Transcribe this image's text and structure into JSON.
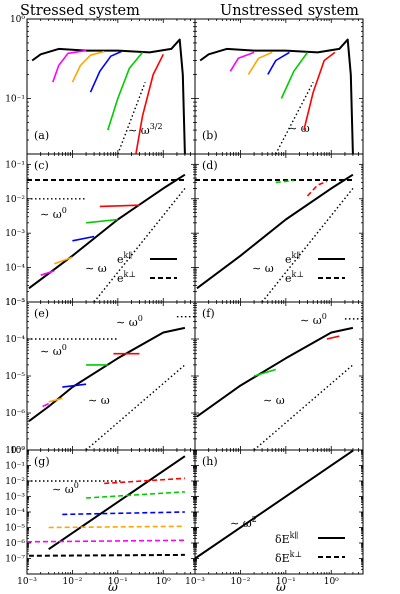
{
  "titles": {
    "left": "Stressed system",
    "right": "Unstressed system"
  },
  "x_label": "ω",
  "legend_rows23": {
    "par": "e",
    "par_sup": "k∥",
    "perp": "e",
    "perp_sup": "k⊥"
  },
  "legend_row4": {
    "par": "δE",
    "par_sup": "k∥",
    "perp": "δE",
    "perp_sup": "k⊥"
  },
  "colors": {
    "black": "#000000",
    "magenta": "#ff00ff",
    "orange": "#ffa500",
    "blue": "#0000ff",
    "green": "#00cc00",
    "red": "#ff0000"
  },
  "chart_data": [
    {
      "panel": "a",
      "label": "(a)",
      "type": "line",
      "x_scale": "log",
      "y_scale": "log",
      "xlim": [
        0.001,
        5
      ],
      "ylim": [
        0.02,
        1
      ],
      "annotation": "~ ω^{3/2}",
      "y_ticks": [
        "10⁰",
        "10⁻¹"
      ],
      "series": [
        {
          "color": "black",
          "points": [
            [
              0.0013,
              0.3
            ],
            [
              0.002,
              0.36
            ],
            [
              0.005,
              0.42
            ],
            [
              0.02,
              0.4
            ],
            [
              0.1,
              0.4
            ],
            [
              0.5,
              0.38
            ],
            [
              1.5,
              0.42
            ],
            [
              2.3,
              0.55
            ],
            [
              2.7,
              0.2
            ],
            [
              3.0,
              0.02
            ]
          ]
        },
        {
          "color": "magenta",
          "points": [
            [
              0.0037,
              0.16
            ],
            [
              0.005,
              0.26
            ],
            [
              0.008,
              0.37
            ],
            [
              0.02,
              0.4
            ]
          ]
        },
        {
          "color": "orange",
          "points": [
            [
              0.01,
              0.16
            ],
            [
              0.015,
              0.26
            ],
            [
              0.025,
              0.35
            ],
            [
              0.05,
              0.39
            ]
          ]
        },
        {
          "color": "blue",
          "points": [
            [
              0.025,
              0.12
            ],
            [
              0.04,
              0.22
            ],
            [
              0.07,
              0.34
            ],
            [
              0.12,
              0.39
            ]
          ]
        },
        {
          "color": "green",
          "points": [
            [
              0.06,
              0.04
            ],
            [
              0.1,
              0.1
            ],
            [
              0.18,
              0.24
            ],
            [
              0.35,
              0.38
            ]
          ]
        },
        {
          "color": "red",
          "points": [
            [
              0.25,
              0.02
            ],
            [
              0.35,
              0.06
            ],
            [
              0.6,
              0.2
            ],
            [
              1.0,
              0.36
            ]
          ]
        }
      ],
      "guide": {
        "style": "dotted",
        "slope": 1.5,
        "from": [
          0.1,
          0.02
        ],
        "to": [
          0.4,
          0.16
        ]
      }
    },
    {
      "panel": "b",
      "label": "(b)",
      "type": "line",
      "x_scale": "log",
      "y_scale": "log",
      "xlim": [
        0.001,
        5
      ],
      "ylim": [
        0.02,
        1
      ],
      "annotation": "~ ω",
      "series": [
        {
          "color": "black",
          "points": [
            [
              0.0013,
              0.3
            ],
            [
              0.002,
              0.36
            ],
            [
              0.005,
              0.42
            ],
            [
              0.02,
              0.4
            ],
            [
              0.1,
              0.4
            ],
            [
              0.5,
              0.38
            ],
            [
              1.5,
              0.42
            ],
            [
              2.3,
              0.55
            ],
            [
              2.7,
              0.2
            ],
            [
              3.0,
              0.02
            ]
          ]
        },
        {
          "color": "magenta",
          "points": [
            [
              0.006,
              0.22
            ],
            [
              0.009,
              0.32
            ],
            [
              0.02,
              0.38
            ]
          ]
        },
        {
          "color": "orange",
          "points": [
            [
              0.015,
              0.2
            ],
            [
              0.025,
              0.32
            ],
            [
              0.05,
              0.38
            ]
          ]
        },
        {
          "color": "blue",
          "points": [
            [
              0.04,
              0.2
            ],
            [
              0.06,
              0.3
            ],
            [
              0.12,
              0.38
            ]
          ]
        },
        {
          "color": "green",
          "points": [
            [
              0.08,
              0.1
            ],
            [
              0.15,
              0.22
            ],
            [
              0.3,
              0.38
            ]
          ]
        },
        {
          "color": "red",
          "points": [
            [
              0.25,
              0.04
            ],
            [
              0.4,
              0.12
            ],
            [
              0.7,
              0.3
            ],
            [
              1.2,
              0.38
            ]
          ]
        }
      ],
      "guide": {
        "style": "dotted",
        "slope": 1,
        "from": [
          0.06,
          0.02
        ],
        "to": [
          0.4,
          0.16
        ]
      }
    },
    {
      "panel": "c",
      "label": "(c)",
      "type": "line",
      "x_scale": "log",
      "y_scale": "log",
      "xlim": [
        0.001,
        5
      ],
      "ylim": [
        1e-05,
        0.2
      ],
      "annotations": [
        "~ ω⁰",
        "~ ω"
      ],
      "y_ticks": [
        "10⁻¹",
        "10⁻²",
        "10⁻³",
        "10⁻⁴",
        "10⁻⁵"
      ],
      "series": [
        {
          "color": "black",
          "style": "solid",
          "points": [
            [
              0.0011,
              2.5e-05
            ],
            [
              0.01,
              0.00022
            ],
            [
              0.1,
              0.0025
            ],
            [
              1,
              0.02
            ],
            [
              3,
              0.05
            ]
          ]
        },
        {
          "color": "black",
          "style": "dashed",
          "points": [
            [
              0.001,
              0.035
            ],
            [
              3,
              0.035
            ]
          ]
        },
        {
          "color": "magenta",
          "style": "solid",
          "points": [
            [
              0.002,
              6e-05
            ],
            [
              0.004,
              8e-05
            ]
          ]
        },
        {
          "color": "orange",
          "style": "solid",
          "points": [
            [
              0.004,
              0.00013
            ],
            [
              0.01,
              0.0002
            ]
          ]
        },
        {
          "color": "blue",
          "style": "solid",
          "points": [
            [
              0.01,
              0.0006
            ],
            [
              0.03,
              0.0008
            ]
          ]
        },
        {
          "color": "green",
          "style": "solid",
          "points": [
            [
              0.02,
              0.002
            ],
            [
              0.1,
              0.0025
            ]
          ]
        },
        {
          "color": "red",
          "style": "solid",
          "points": [
            [
              0.04,
              0.006
            ],
            [
              0.3,
              0.0065
            ]
          ]
        }
      ],
      "guides": [
        {
          "style": "dotted",
          "from": [
            0.001,
            0.01
          ],
          "to": [
            0.02,
            0.01
          ]
        },
        {
          "style": "dotted",
          "slope": 1,
          "from": [
            0.03,
            1e-05
          ],
          "to": [
            3,
            0.02
          ]
        }
      ]
    },
    {
      "panel": "d",
      "label": "(d)",
      "type": "line",
      "x_scale": "log",
      "y_scale": "log",
      "xlim": [
        0.001,
        5
      ],
      "ylim": [
        1e-05,
        0.2
      ],
      "annotation": "~ ω",
      "series": [
        {
          "color": "black",
          "style": "solid",
          "points": [
            [
              0.0011,
              2.5e-05
            ],
            [
              0.01,
              0.00022
            ],
            [
              0.1,
              0.0025
            ],
            [
              1,
              0.02
            ],
            [
              3,
              0.05
            ]
          ]
        },
        {
          "color": "black",
          "style": "dashed",
          "points": [
            [
              0.001,
              0.035
            ],
            [
              3,
              0.035
            ]
          ]
        },
        {
          "color": "green",
          "style": "dashed",
          "points": [
            [
              0.06,
              0.03
            ],
            [
              0.15,
              0.034
            ]
          ]
        },
        {
          "color": "red",
          "style": "dashed",
          "points": [
            [
              0.3,
              0.012
            ],
            [
              0.5,
              0.025
            ],
            [
              0.8,
              0.032
            ]
          ]
        }
      ],
      "guide": {
        "style": "dotted",
        "slope": 1,
        "from": [
          0.03,
          1e-05
        ],
        "to": [
          3,
          0.02
        ]
      }
    },
    {
      "panel": "e",
      "label": "(e)",
      "type": "line",
      "x_scale": "log",
      "y_scale": "log",
      "xlim": [
        0.001,
        5
      ],
      "ylim": [
        1e-07,
        0.001
      ],
      "annotations": [
        "~ ω⁰",
        "~ ω⁰",
        "~ ω"
      ],
      "y_ticks": [
        "10⁻³",
        "10⁻⁴",
        "10⁻⁵",
        "10⁻⁶",
        "10⁻⁷"
      ],
      "series": [
        {
          "color": "black",
          "points": [
            [
              0.0011,
              6e-07
            ],
            [
              0.003,
              1.5e-06
            ],
            [
              0.01,
              5e-06
            ],
            [
              0.1,
              3e-05
            ],
            [
              1,
              0.00015
            ],
            [
              3,
              0.0002
            ]
          ]
        },
        {
          "color": "magenta",
          "points": [
            [
              0.0022,
              1.5e-06
            ],
            [
              0.003,
              1.8e-06
            ]
          ]
        },
        {
          "color": "orange",
          "points": [
            [
              0.003,
              2e-06
            ],
            [
              0.006,
              2.5e-06
            ]
          ]
        },
        {
          "color": "blue",
          "points": [
            [
              0.006,
              5e-06
            ],
            [
              0.02,
              6e-06
            ]
          ]
        },
        {
          "color": "green",
          "points": [
            [
              0.02,
              2e-05
            ],
            [
              0.06,
              2e-05
            ]
          ]
        },
        {
          "color": "red",
          "points": [
            [
              0.08,
              4e-05
            ],
            [
              0.3,
              4e-05
            ]
          ]
        }
      ],
      "guides": [
        {
          "style": "dotted",
          "from": [
            0.001,
            0.0001
          ],
          "to": [
            0.1,
            0.0001
          ]
        },
        {
          "style": "dotted",
          "from": [
            2,
            0.0004
          ],
          "to": [
            5,
            0.0004
          ]
        },
        {
          "style": "dotted",
          "slope": 1,
          "from": [
            0.02,
            1e-07
          ],
          "to": [
            3,
            2e-05
          ]
        }
      ]
    },
    {
      "panel": "f",
      "label": "(f)",
      "type": "line",
      "x_scale": "log",
      "y_scale": "log",
      "xlim": [
        0.001,
        5
      ],
      "ylim": [
        1e-07,
        0.001
      ],
      "annotations": [
        "~ ω⁰",
        "~ ω"
      ],
      "series": [
        {
          "color": "black",
          "points": [
            [
              0.0011,
              8e-07
            ],
            [
              0.01,
              5.5e-06
            ],
            [
              0.1,
              3e-05
            ],
            [
              1,
              0.00015
            ],
            [
              3,
              0.0002
            ]
          ]
        },
        {
          "color": "green",
          "points": [
            [
              0.02,
              1e-05
            ],
            [
              0.06,
              1.5e-05
            ]
          ]
        },
        {
          "color": "red",
          "points": [
            [
              0.8,
              0.0001
            ],
            [
              1.5,
              0.00012
            ]
          ]
        }
      ],
      "guides": [
        {
          "style": "dotted",
          "from": [
            2,
            0.00035
          ],
          "to": [
            5,
            0.00035
          ]
        },
        {
          "style": "dotted",
          "slope": 1,
          "from": [
            0.02,
            1e-07
          ],
          "to": [
            3,
            2e-05
          ]
        }
      ]
    },
    {
      "panel": "g",
      "label": "(g)",
      "type": "line",
      "x_scale": "log",
      "y_scale": "log",
      "xlim": [
        0.001,
        5
      ],
      "ylim": [
        1e-07,
        10
      ],
      "annotation": "~ ω⁰",
      "y_ticks": [
        "10⁰",
        "10⁻¹",
        "10⁻²",
        "10⁻³",
        "10⁻⁴",
        "10⁻⁵",
        "10⁻⁶",
        "10⁻⁷"
      ],
      "series": [
        {
          "color": "black",
          "style": "solid",
          "points": [
            [
              0.003,
              4e-06
            ],
            [
              3,
              4
            ]
          ]
        },
        {
          "color": "black",
          "style": "dashed",
          "points": [
            [
              0.0011,
              1.5e-06
            ],
            [
              3,
              1.7e-06
            ]
          ]
        },
        {
          "color": "magenta",
          "style": "dashed",
          "points": [
            [
              0.001,
              1.2e-05
            ],
            [
              3,
              1.5e-05
            ]
          ]
        },
        {
          "color": "orange",
          "style": "dashed",
          "points": [
            [
              0.003,
              0.0001
            ],
            [
              3,
              0.00012
            ]
          ]
        },
        {
          "color": "blue",
          "style": "dashed",
          "points": [
            [
              0.006,
              0.0007
            ],
            [
              3,
              0.001
            ]
          ]
        },
        {
          "color": "green",
          "style": "dashed",
          "points": [
            [
              0.02,
              0.008
            ],
            [
              3,
              0.02
            ]
          ]
        },
        {
          "color": "red",
          "style": "dashed",
          "points": [
            [
              0.05,
              0.07
            ],
            [
              3,
              0.15
            ]
          ]
        }
      ],
      "guide": {
        "style": "dotted",
        "from": [
          0.001,
          0.1
        ],
        "to": [
          0.12,
          0.1
        ]
      }
    },
    {
      "panel": "h",
      "label": "(h)",
      "type": "line",
      "x_scale": "log",
      "y_scale": "log",
      "xlim": [
        0.001,
        5
      ],
      "ylim": [
        1e-07,
        10
      ],
      "annotation": "~ ω²",
      "series": [
        {
          "color": "black",
          "style": "solid",
          "points": [
            [
              0.001,
              1e-06
            ],
            [
              3,
              9
            ]
          ]
        }
      ]
    }
  ],
  "x_tick_labels": [
    "10⁻³",
    "10⁻²",
    "10⁻¹",
    "10⁰"
  ]
}
